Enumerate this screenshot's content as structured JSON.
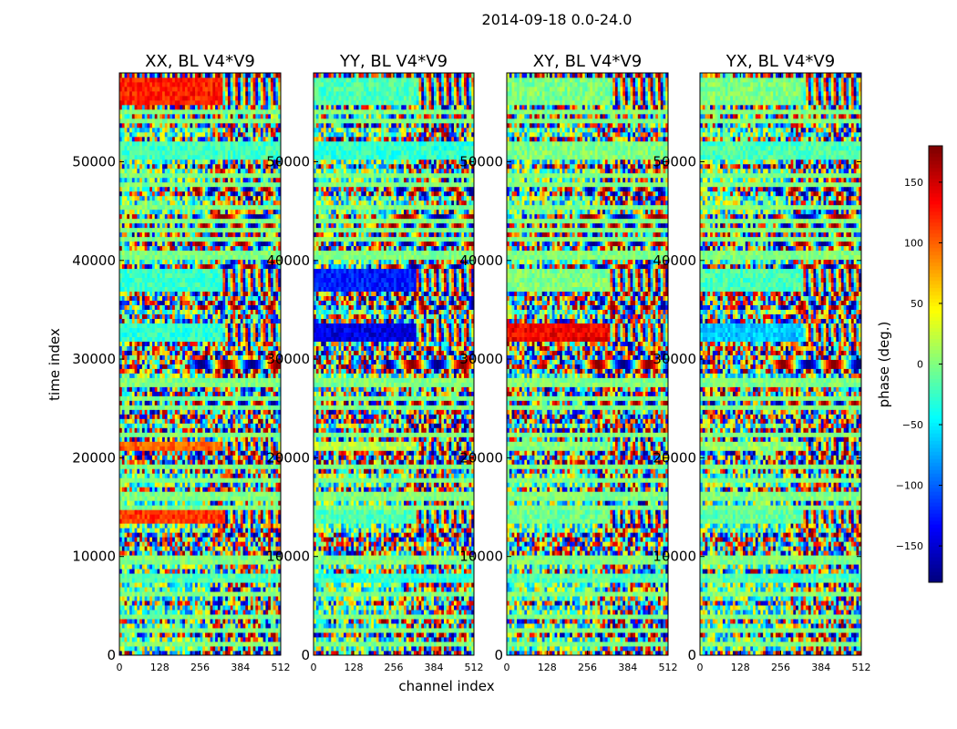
{
  "chart_data": {
    "type": "heatmap",
    "suptitle": "2014-09-18 0.0-24.0",
    "xlabel": "channel index",
    "ylabel": "time index",
    "xlim": [
      0,
      512
    ],
    "ylim": [
      0,
      59000
    ],
    "xticks": [
      0,
      128,
      256,
      384,
      512
    ],
    "xtick_labels": [
      "0",
      "128",
      "256",
      "384",
      "512"
    ],
    "yticks": [
      0,
      10000,
      20000,
      30000,
      40000,
      50000
    ],
    "ytick_labels": [
      "0",
      "10000",
      "20000",
      "30000",
      "40000",
      "50000"
    ],
    "panels": [
      {
        "title": "XX, BL V4*V9",
        "polarization": "XX"
      },
      {
        "title": "YY, BL V4*V9",
        "polarization": "YY"
      },
      {
        "title": "XY, BL V4*V9",
        "polarization": "XY"
      },
      {
        "title": "YX, BL V4*V9",
        "polarization": "YX"
      }
    ],
    "colorbar": {
      "label": "phase (deg.)",
      "range": [
        -180,
        180
      ],
      "ticks": [
        -150,
        -100,
        -50,
        0,
        50,
        100,
        150
      ],
      "tick_labels": [
        "−150",
        "−100",
        "−50",
        "0",
        "50",
        "100",
        "150"
      ],
      "colormap": "jet"
    }
  }
}
